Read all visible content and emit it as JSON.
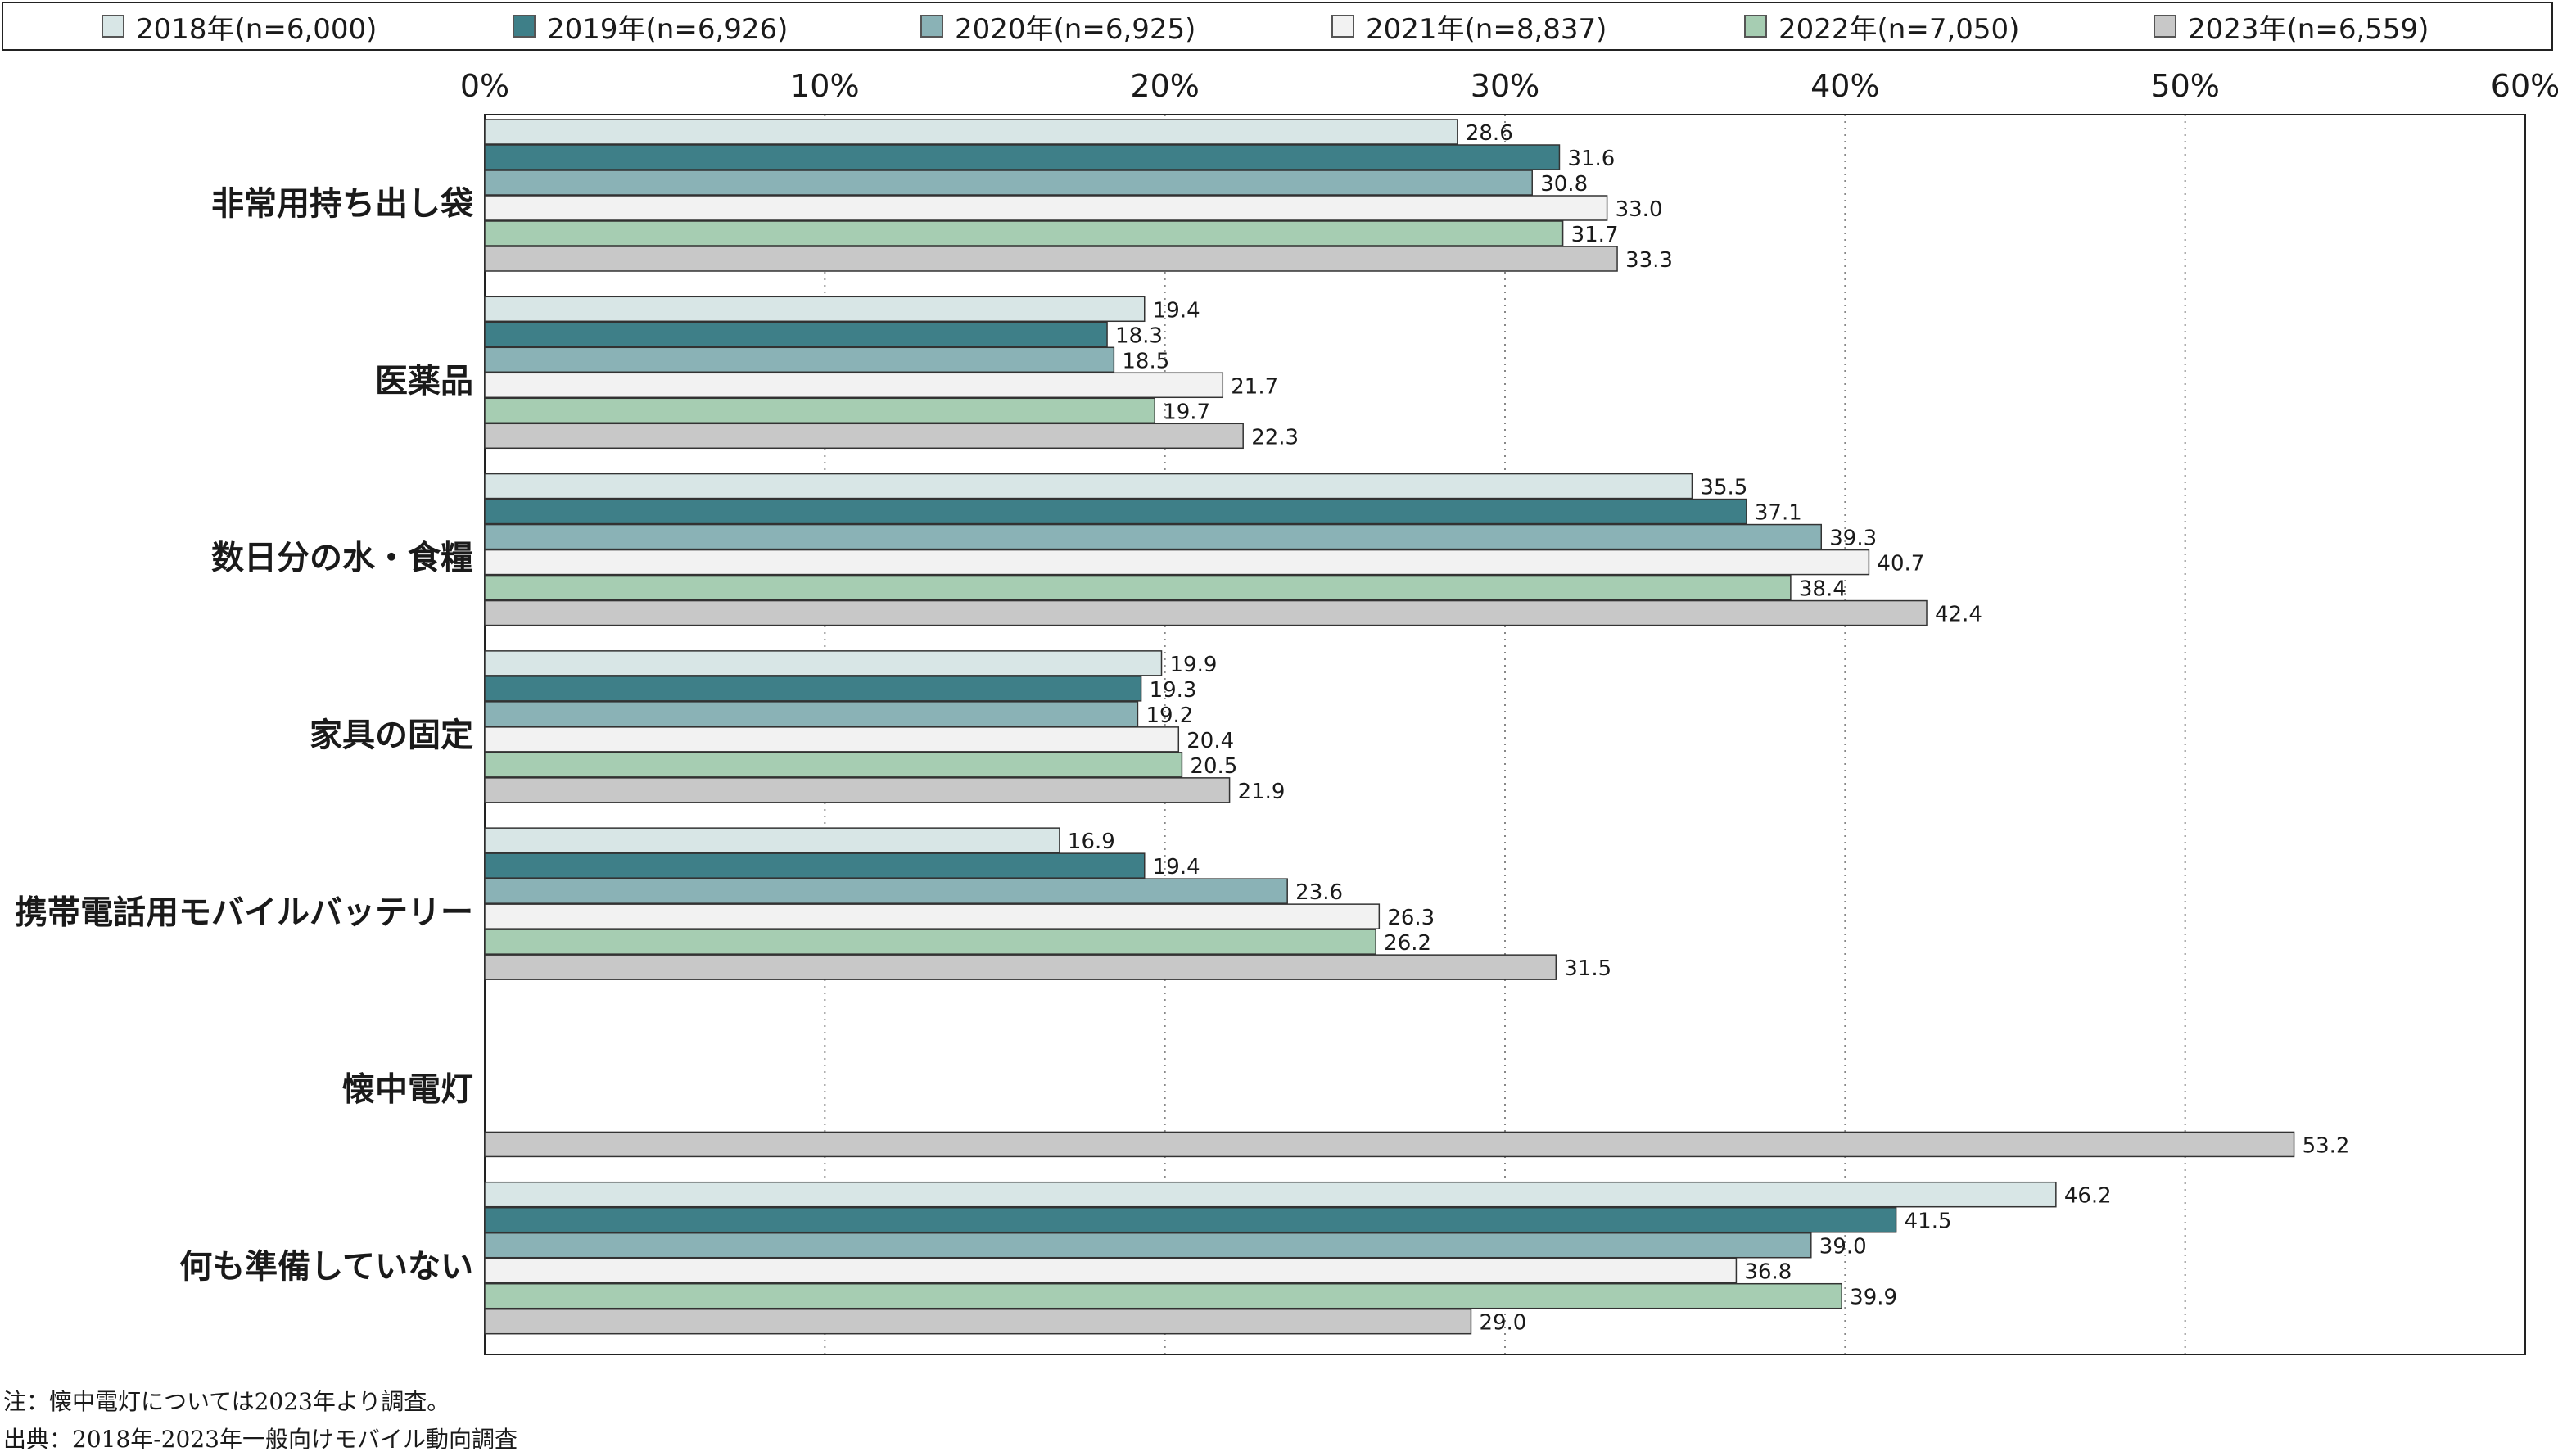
{
  "legend": [
    {
      "label": "2018年(n=6,000)",
      "color": "#d8e6e6"
    },
    {
      "label": "2019年(n=6,926)",
      "color": "#3e7f88"
    },
    {
      "label": "2020年(n=6,925)",
      "color": "#8ab2b6"
    },
    {
      "label": "2021年(n=8,837)",
      "color": "#f2f2f2"
    },
    {
      "label": "2022年(n=7,050)",
      "color": "#a6cdb2"
    },
    {
      "label": "2023年(n=6,559)",
      "color": "#c8c8c8"
    }
  ],
  "chart_data": {
    "type": "bar",
    "orientation": "horizontal",
    "xlim": [
      0,
      60
    ],
    "xticks": [
      "0%",
      "10%",
      "20%",
      "30%",
      "40%",
      "50%",
      "60%"
    ],
    "grid": "vertical-dotted",
    "legend_position": "top",
    "categories": [
      "非常用持ち出し袋",
      "医薬品",
      "数日分の水・食糧",
      "家具の固定",
      "携帯電話用モバイルバッテリー",
      "懐中電灯",
      "何も準備していない"
    ],
    "series": [
      {
        "name": "2018年(n=6,000)",
        "values": [
          28.6,
          19.4,
          35.5,
          19.9,
          16.9,
          null,
          46.2
        ],
        "labels": [
          "28.6",
          "19.4",
          "35.5",
          "19.9",
          "16.9",
          "",
          "46.2"
        ]
      },
      {
        "name": "2019年(n=6,926)",
        "values": [
          31.6,
          18.3,
          37.1,
          19.3,
          19.4,
          null,
          41.5
        ],
        "labels": [
          "31.6",
          "18.3",
          "37.1",
          "19.3",
          "19.4",
          "",
          "41.5"
        ]
      },
      {
        "name": "2020年(n=6,925)",
        "values": [
          30.8,
          18.5,
          39.3,
          19.2,
          23.6,
          null,
          39.0
        ],
        "labels": [
          "30.8",
          "18.5",
          "39.3",
          "19.2",
          "23.6",
          "",
          "39.0"
        ]
      },
      {
        "name": "2021年(n=8,837)",
        "values": [
          33.0,
          21.7,
          40.7,
          20.4,
          26.3,
          null,
          36.8
        ],
        "labels": [
          "33.0",
          "21.7",
          "40.7",
          "20.4",
          "26.3",
          "",
          "36.8"
        ]
      },
      {
        "name": "2022年(n=7,050)",
        "values": [
          31.7,
          19.7,
          38.4,
          20.5,
          26.2,
          null,
          39.9
        ],
        "labels": [
          "31.7",
          "19.7",
          "38.4",
          "20.5",
          "26.2",
          "",
          "39.9"
        ]
      },
      {
        "name": "2023年(n=6,559)",
        "values": [
          33.3,
          22.3,
          42.4,
          21.9,
          31.5,
          53.2,
          29.0
        ],
        "labels": [
          "33.3",
          "22.3",
          "42.4",
          "21.9",
          "31.5",
          "53.2",
          "29.0"
        ]
      }
    ]
  },
  "notes": {
    "note": "注：懐中電灯については2023年より調査。",
    "source": "出典：2018年-2023年一般向けモバイル動向調査"
  }
}
